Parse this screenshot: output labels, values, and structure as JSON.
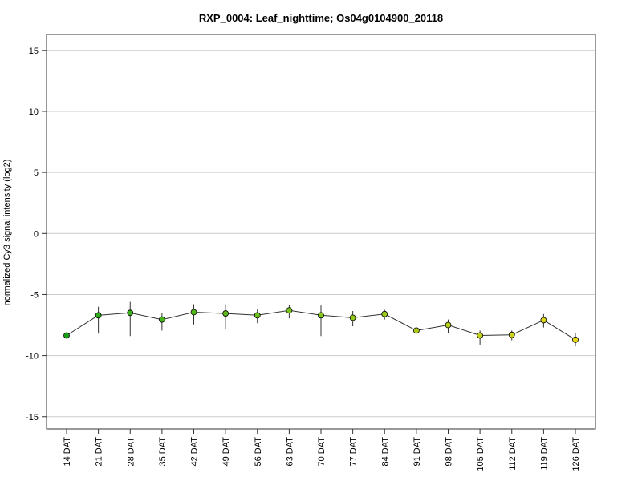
{
  "chart_data": {
    "type": "line",
    "title": "RXP_0004: Leaf_nighttime; Os04g0104900_20118",
    "xlabel": "",
    "ylabel": "normalized Cy3 signal intensity (log2)",
    "ylim": [
      -16,
      16.3
    ],
    "yticks": [
      -15,
      -10,
      -5,
      0,
      5,
      10,
      15
    ],
    "grid": true,
    "categories": [
      "14 DAT",
      "21 DAT",
      "28 DAT",
      "35 DAT",
      "42 DAT",
      "49 DAT",
      "56 DAT",
      "63 DAT",
      "70 DAT",
      "77 DAT",
      "84 DAT",
      "91 DAT",
      "98 DAT",
      "105 DAT",
      "112 DAT",
      "119 DAT",
      "126 DAT"
    ],
    "series": [
      {
        "values": [
          -8.35,
          -6.7,
          -6.5,
          -7.05,
          -6.45,
          -6.55,
          -6.7,
          -6.3,
          -6.7,
          -6.9,
          -6.6,
          -7.95,
          -7.5,
          -8.35,
          -8.3,
          -7.1,
          -8.7
        ],
        "error_low": [
          -8.35,
          -8.2,
          -8.4,
          -7.95,
          -7.45,
          -7.8,
          -7.35,
          -6.95,
          -8.4,
          -7.6,
          -7.05,
          -7.95,
          -8.15,
          -9.1,
          -8.75,
          -7.7,
          -9.25
        ],
        "error_high": [
          -8.35,
          -6.0,
          -5.6,
          -6.5,
          -5.8,
          -5.8,
          -6.2,
          -5.85,
          -5.9,
          -6.35,
          -6.25,
          -7.95,
          -7.05,
          -7.95,
          -7.95,
          -6.6,
          -8.15
        ],
        "point_colors": [
          "#1a9f1a",
          "#2eab1a",
          "#3bb01a",
          "#46b51a",
          "#52b91a",
          "#5ebd1a",
          "#6ac11a",
          "#78c41a",
          "#85c61a",
          "#92c81a",
          "#9ecb1a",
          "#abcd1a",
          "#b8cf1a",
          "#c3d11a",
          "#cfd31a",
          "#d9d51a",
          "#e3d71a"
        ]
      }
    ],
    "colors": {
      "line": "#333333",
      "grid": "#cccccc",
      "frame": "#333333",
      "marker_stroke": "#000000",
      "errorbar": "#333333"
    }
  }
}
